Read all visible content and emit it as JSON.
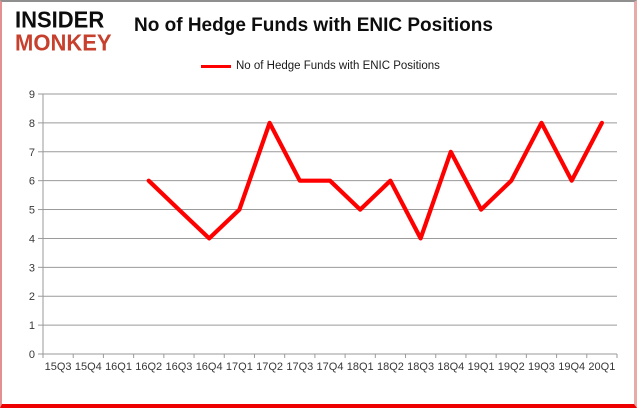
{
  "branding": {
    "logo_line1": "INSIDER",
    "logo_line2": "MONKEY",
    "logo_color_top": "#0d0d0d",
    "logo_color_bottom": "#c7402d"
  },
  "header": {
    "title": "No of Hedge Funds with ENIC Positions"
  },
  "legend": {
    "label": "No of Hedge Funds with ENIC Positions",
    "line_color": "#ff0000"
  },
  "colors": {
    "series_red": "#ff0000",
    "gridline_gray": "#9a9a9a",
    "axis_gray": "#9a9a9a",
    "axis_text": "#383838",
    "frame_bottom_red": "#ee0000",
    "frame_side_pink": "#e9aaaa",
    "frame_top_gray": "#8f8f8f"
  },
  "chart_data": {
    "type": "line",
    "title": "No of Hedge Funds with ENIC Positions",
    "categories": [
      "15Q3",
      "15Q4",
      "16Q1",
      "16Q2",
      "16Q3",
      "16Q4",
      "17Q1",
      "17Q2",
      "17Q3",
      "17Q4",
      "18Q1",
      "18Q2",
      "18Q3",
      "18Q4",
      "19Q1",
      "19Q2",
      "19Q3",
      "19Q4",
      "20Q1"
    ],
    "series": [
      {
        "name": "No of Hedge Funds with ENIC Positions",
        "color": "#ff0000",
        "values": [
          null,
          null,
          null,
          6,
          5,
          4,
          5,
          8,
          6,
          6,
          5,
          6,
          4,
          7,
          5,
          6,
          8,
          6,
          8
        ]
      }
    ],
    "xlabel": "",
    "ylabel": "",
    "ylim": [
      0,
      9
    ],
    "ytick_step": 1,
    "grid": "horizontal",
    "legend_position": "top"
  }
}
